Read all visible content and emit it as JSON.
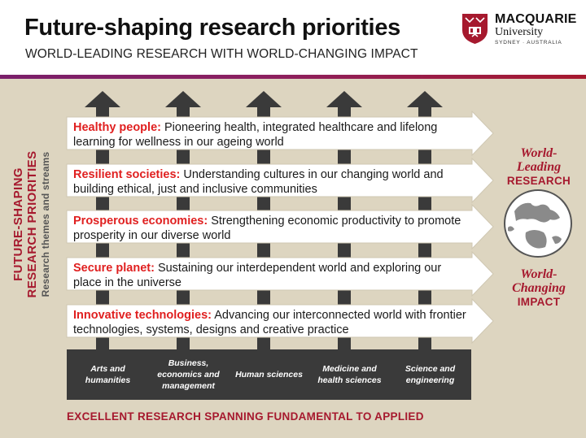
{
  "header": {
    "title": "Future-shaping research priorities",
    "subtitle": "WORLD-LEADING RESEARCH WITH WORLD-CHANGING IMPACT"
  },
  "logo": {
    "brand": "MACQUARIE",
    "university": "University",
    "location": "SYDNEY · AUSTRALIA"
  },
  "side_label": {
    "line1": "FUTURE-SHAPING",
    "line2": "RESEARCH PRIORITIES",
    "line3": "Research themes and streams"
  },
  "priorities": [
    {
      "highlight": "Healthy people:",
      "text": " Pioneering health, integrated healthcare and lifelong learning for wellness in our ageing world"
    },
    {
      "highlight": "Resilient societies:",
      "text": " Understanding cultures in our changing world and building ethical, just and inclusive communities"
    },
    {
      "highlight": "Prosperous economies:",
      "text": " Strengthening economic productivity to promote prosperity in our diverse world"
    },
    {
      "highlight": "Secure planet:",
      "text": " Sustaining our interdependent world and exploring our place in the universe"
    },
    {
      "highlight": "Innovative technologies:",
      "text": " Advancing our interconnected world with frontier technologies, systems, designs and creative practice"
    }
  ],
  "disciplines": [
    "Arts and humanities",
    "Business, economics and management",
    "Human sciences",
    "Medicine and health sciences",
    "Science and engineering"
  ],
  "right": {
    "leading_1": "World-",
    "leading_2": "Leading",
    "leading_3": "RESEARCH",
    "changing_1": "World-",
    "changing_2": "Changing",
    "changing_3": "IMPACT"
  },
  "footer": "EXCELLENT RESEARCH SPANNING FUNDAMENTAL TO APPLIED",
  "colors": {
    "accent_red": "#a6192e",
    "highlight_red": "#e02020",
    "panel_beige": "#ddd5c0",
    "dark_gray": "#3a3a3a"
  }
}
